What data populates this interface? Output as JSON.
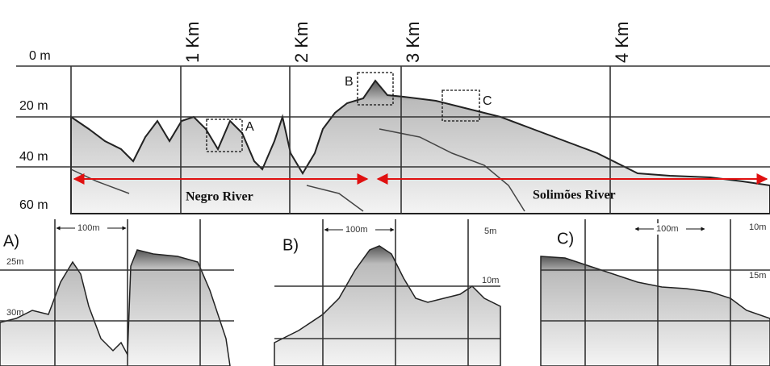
{
  "main": {
    "depth_labels": [
      "0 m",
      "20 m",
      "40 m",
      "60 m"
    ],
    "distance_labels": [
      "1 Km",
      "2 Km",
      "3 Km",
      "4 Km"
    ],
    "boxes": [
      "A",
      "B",
      "C"
    ],
    "rivers": [
      "Negro River",
      "Solimões River"
    ]
  },
  "panels": [
    {
      "label": "A)",
      "scale": "100m",
      "depths": [
        "25m",
        "30m"
      ]
    },
    {
      "label": "B)",
      "scale": "100m",
      "depths": [
        "5m",
        "10m"
      ]
    },
    {
      "label": "C)",
      "scale": "100m",
      "depths": [
        "10m",
        "15m"
      ]
    }
  ]
}
